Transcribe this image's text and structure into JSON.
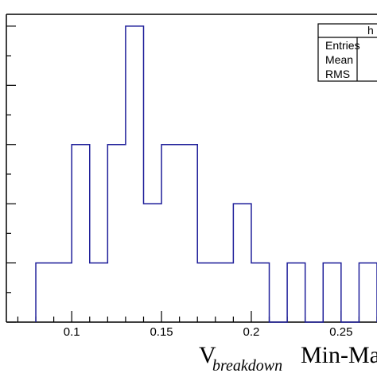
{
  "chart_data": {
    "type": "bar",
    "subtype": "histogram",
    "bin_edges": [
      0.08,
      0.09,
      0.1,
      0.11,
      0.12,
      0.13,
      0.14,
      0.15,
      0.16,
      0.17,
      0.18,
      0.19,
      0.2,
      0.21,
      0.22,
      0.23,
      0.24,
      0.25,
      0.26,
      0.27
    ],
    "values": [
      1,
      1,
      3,
      1,
      3,
      5,
      2,
      3,
      3,
      1,
      1,
      2,
      1,
      0,
      1,
      0,
      1,
      0,
      1
    ],
    "x_tick_labels": [
      "0.1",
      "0.15",
      "0.2",
      "0.25"
    ],
    "x_ticks": [
      0.1,
      0.15,
      0.2,
      0.25
    ],
    "xlim": [
      0.0636,
      0.27
    ],
    "ylim": [
      0,
      5.2
    ],
    "xlabel": "V",
    "xlabel_subscript": "breakdown",
    "xlabel_suffix": "Min-Ma",
    "line_color": "#1f1f9a",
    "grid": false,
    "stats_box": {
      "title": "h",
      "rows": [
        "Entries",
        "Mean",
        "RMS"
      ],
      "placement": "top-right"
    }
  }
}
